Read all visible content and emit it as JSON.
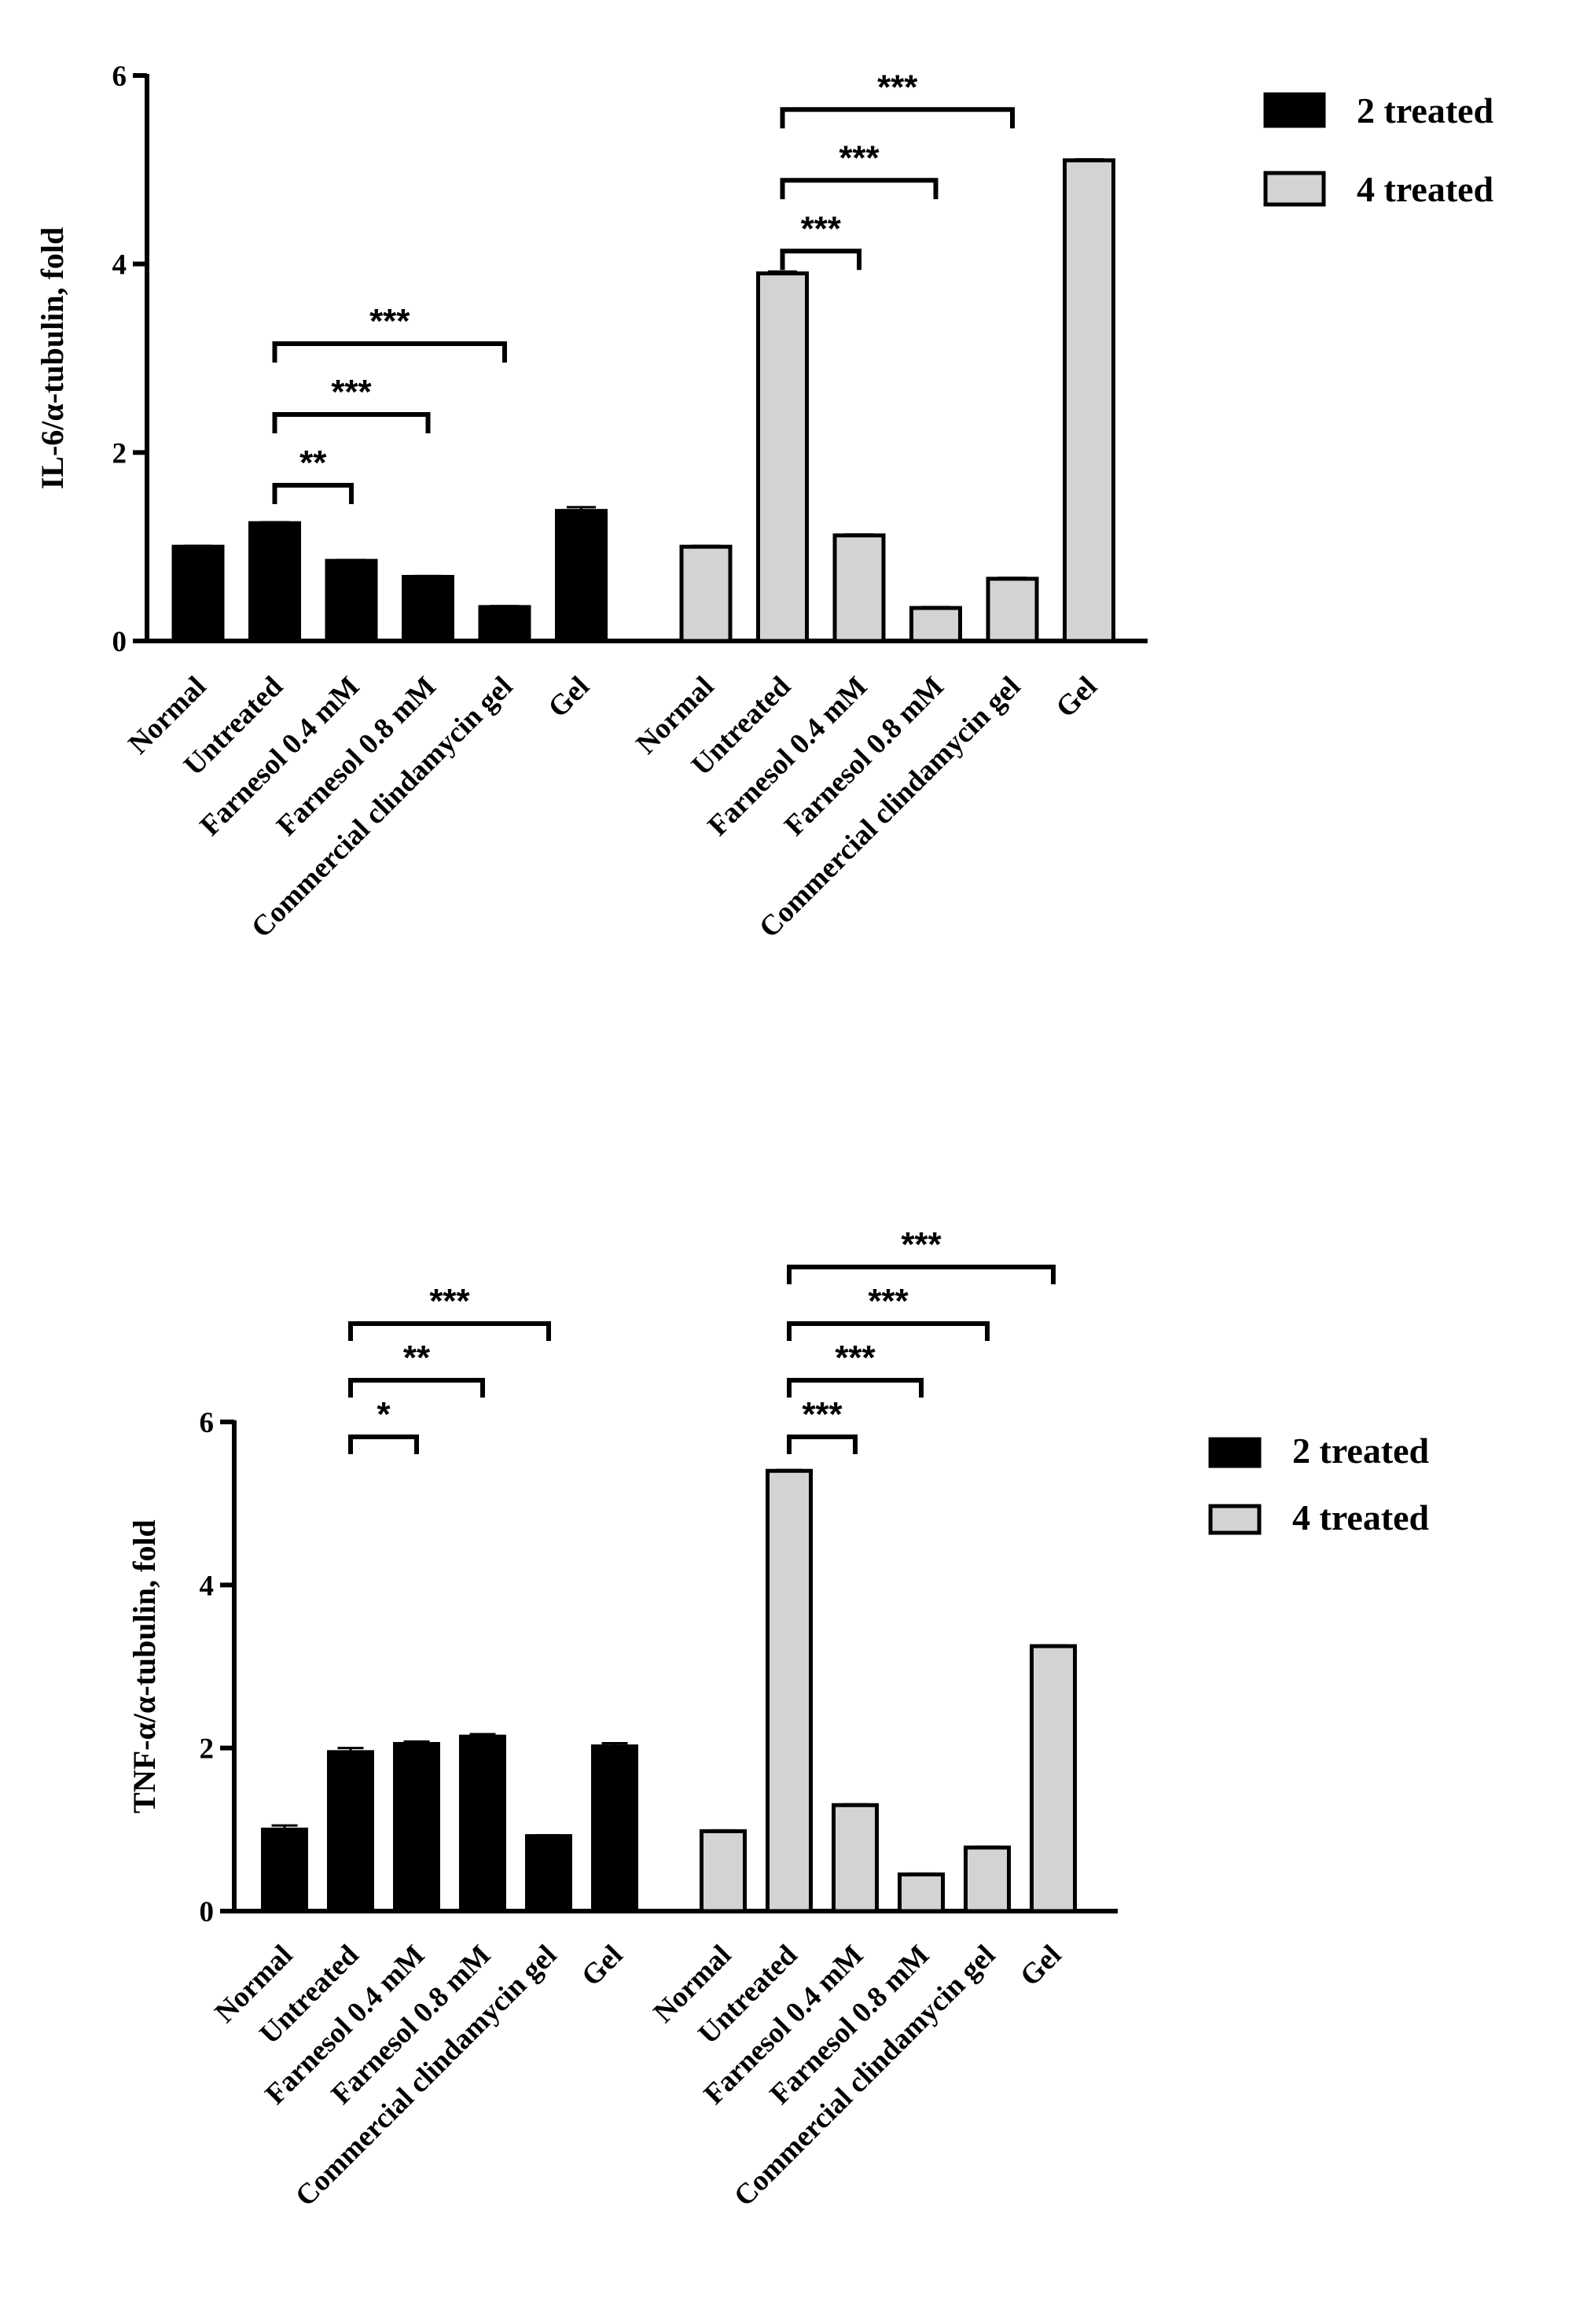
{
  "chart_data": [
    {
      "type": "bar",
      "ylabel": "IL-6/α-tubulin, fold",
      "ylim": [
        0,
        6
      ],
      "yticks": [
        0,
        2,
        4,
        6
      ],
      "categories": [
        "Normal",
        "Untreated",
        "Farnesol 0.4 mM",
        "Farnesol 0.8 mM",
        "Commercial clindamycin gel",
        "Gel"
      ],
      "series": [
        {
          "name": "2 treated",
          "color": "#000000",
          "values": [
            1.0,
            1.25,
            0.85,
            0.68,
            0.36,
            1.38
          ],
          "errors": [
            0.01,
            0.01,
            0.01,
            0.01,
            0.01,
            0.04
          ]
        },
        {
          "name": "4 treated",
          "color": "#d3d3d3",
          "values": [
            1.0,
            3.9,
            1.12,
            0.35,
            0.66,
            5.1
          ],
          "errors": [
            0.01,
            0.02,
            0.01,
            0.01,
            0.01,
            0.01
          ]
        }
      ],
      "significance": [
        {
          "series": 0,
          "from": 1,
          "to": 2,
          "label": "**"
        },
        {
          "series": 0,
          "from": 1,
          "to": 3,
          "label": "***"
        },
        {
          "series": 0,
          "from": 1,
          "to": 4,
          "label": "***"
        },
        {
          "series": 1,
          "from": 1,
          "to": 2,
          "label": "***"
        },
        {
          "series": 1,
          "from": 1,
          "to": 3,
          "label": "***"
        },
        {
          "series": 1,
          "from": 1,
          "to": 4,
          "label": "***"
        }
      ]
    },
    {
      "type": "bar",
      "ylabel": "TNF-α/α-tubulin, fold",
      "ylim": [
        0,
        6
      ],
      "yticks": [
        0,
        2,
        4,
        6
      ],
      "categories": [
        "Normal",
        "Untreated",
        "Farnesol 0.4 mM",
        "Farnesol 0.8 mM",
        "Commercial clindamycin gel",
        "Gel"
      ],
      "series": [
        {
          "name": "2 treated",
          "color": "#000000",
          "values": [
            1.0,
            1.95,
            2.05,
            2.14,
            0.92,
            2.02
          ],
          "errors": [
            0.05,
            0.05,
            0.03,
            0.03,
            0.01,
            0.04
          ]
        },
        {
          "name": "4 treated",
          "color": "#d3d3d3",
          "values": [
            0.98,
            5.4,
            1.3,
            0.45,
            0.78,
            3.25
          ],
          "errors": [
            0.01,
            0.01,
            0.01,
            0.01,
            0.01,
            0.01
          ]
        }
      ],
      "significance": [
        {
          "series": 0,
          "from": 1,
          "to": 2,
          "label": "*"
        },
        {
          "series": 0,
          "from": 1,
          "to": 3,
          "label": "**"
        },
        {
          "series": 0,
          "from": 1,
          "to": 4,
          "label": "***"
        },
        {
          "series": 1,
          "from": 1,
          "to": 2,
          "label": "***"
        },
        {
          "series": 1,
          "from": 1,
          "to": 3,
          "label": "***"
        },
        {
          "series": 1,
          "from": 1,
          "to": 4,
          "label": "***"
        },
        {
          "series": 1,
          "from": 1,
          "to": 5,
          "label": "***"
        }
      ]
    }
  ]
}
